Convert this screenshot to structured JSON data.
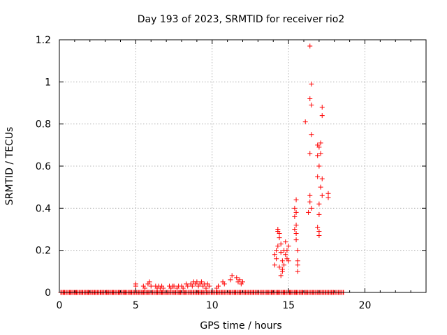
{
  "chart_data": {
    "type": "scatter",
    "title": "Day 193 of 2023, SRMTID for receiver rio2",
    "xlabel": "GPS time / hours",
    "ylabel": "SRMTID / TECUs",
    "xlim": [
      0,
      24
    ],
    "ylim": [
      0,
      1.2
    ],
    "x_ticks": [
      0,
      5,
      10,
      15,
      20
    ],
    "y_ticks": [
      0,
      0.2,
      0.4,
      0.6,
      0.8,
      1,
      1.2
    ],
    "x_tick_labels": [
      "0",
      "5",
      "10",
      "15",
      "20"
    ],
    "y_tick_labels": [
      "0",
      "0.2",
      "0.4",
      "0.6",
      "0.8",
      "1",
      "1.2"
    ],
    "grid": true,
    "marker": "+",
    "series": [
      {
        "name": "SRMTID",
        "color": "#ff0000",
        "x": [
          0.1,
          0.3,
          0.5,
          0.7,
          0.9,
          1.1,
          1.3,
          1.5,
          1.7,
          1.9,
          2.1,
          2.3,
          2.5,
          2.7,
          2.9,
          3.1,
          3.3,
          3.5,
          3.7,
          3.9,
          4.1,
          4.3,
          4.5,
          4.7,
          4.9,
          5.2,
          5.5,
          5.8,
          6.1,
          6.4,
          6.7,
          7.0,
          7.3,
          7.6,
          7.9,
          8.2,
          8.5,
          8.8,
          9.1,
          9.4,
          9.7,
          10.0,
          10.3,
          10.6,
          10.9,
          11.2,
          11.5,
          11.8,
          12.1,
          12.4,
          12.7,
          13.0,
          13.3,
          13.6,
          13.9,
          14.3,
          14.7,
          15.1,
          15.5,
          15.9,
          16.2,
          16.6,
          17.0,
          17.4,
          17.8,
          18.6,
          5.0,
          5.0,
          5.5,
          5.6,
          5.8,
          5.9,
          6.0,
          6.3,
          6.4,
          6.5,
          6.6,
          6.7,
          6.8,
          7.2,
          7.3,
          7.4,
          7.5,
          7.7,
          7.8,
          8.0,
          8.1,
          8.3,
          8.4,
          8.6,
          8.7,
          8.8,
          8.9,
          9.0,
          9.1,
          9.2,
          9.3,
          9.4,
          9.5,
          9.6,
          9.7,
          9.8,
          10.3,
          10.4,
          10.7,
          10.8,
          11.2,
          11.3,
          11.6,
          11.7,
          11.8,
          11.9,
          12.0,
          14.1,
          14.1,
          14.2,
          14.2,
          14.3,
          14.3,
          14.4,
          14.4,
          14.5,
          14.5,
          14.6,
          14.6,
          14.7,
          14.7,
          14.8,
          14.8,
          14.9,
          14.9,
          15.0,
          15.0,
          14.3,
          14.4,
          14.5,
          14.6,
          15.4,
          15.4,
          15.5,
          15.5,
          15.5,
          15.6,
          15.6,
          15.4,
          15.5,
          15.6,
          15.5,
          15.6,
          16.1,
          16.3,
          16.4,
          16.4,
          16.5,
          16.5,
          16.4,
          16.5,
          16.4,
          16.4,
          16.5,
          16.9,
          16.9,
          17.0,
          17.0,
          17.1,
          17.0,
          17.1,
          17.2,
          17.2,
          17.1,
          17.2,
          17.0,
          16.9,
          17.0,
          16.9,
          17.0,
          17.2,
          17.6,
          17.6
        ],
        "y": [
          0,
          0,
          0,
          0,
          0,
          0,
          0,
          0,
          0,
          0,
          0,
          0,
          0,
          0,
          0,
          0,
          0,
          0,
          0,
          0,
          0,
          0,
          0,
          0,
          0,
          0,
          0,
          0,
          0,
          0,
          0,
          0,
          0,
          0,
          0,
          0,
          0,
          0,
          0,
          0,
          0,
          0,
          0,
          0,
          0,
          0,
          0,
          0,
          0,
          0,
          0,
          0,
          0,
          0,
          0,
          0,
          0,
          0,
          0,
          0,
          0,
          0,
          0,
          0,
          0,
          0,
          0.03,
          0.04,
          0.03,
          0.02,
          0.04,
          0.05,
          0.03,
          0.03,
          0.02,
          0.03,
          0.02,
          0.03,
          0.02,
          0.03,
          0.02,
          0.03,
          0.03,
          0.02,
          0.03,
          0.03,
          0.02,
          0.04,
          0.03,
          0.04,
          0.03,
          0.05,
          0.04,
          0.05,
          0.03,
          0.04,
          0.05,
          0.03,
          0.04,
          0.02,
          0.04,
          0.03,
          0.02,
          0.03,
          0.05,
          0.04,
          0.06,
          0.08,
          0.07,
          0.05,
          0.06,
          0.04,
          0.05,
          0.18,
          0.13,
          0.16,
          0.2,
          0.22,
          0.29,
          0.26,
          0.12,
          0.19,
          0.23,
          0.15,
          0.1,
          0.2,
          0.13,
          0.18,
          0.24,
          0.16,
          0.2,
          0.22,
          0.15,
          0.3,
          0.28,
          0.08,
          0.11,
          0.4,
          0.36,
          0.44,
          0.32,
          0.28,
          0.2,
          0.15,
          0.3,
          0.38,
          0.1,
          0.25,
          0.13,
          0.81,
          0.38,
          0.46,
          0.66,
          0.75,
          0.89,
          0.92,
          0.99,
          1.17,
          0.43,
          0.4,
          0.7,
          0.55,
          0.69,
          0.6,
          0.66,
          0.29,
          0.71,
          0.88,
          0.84,
          0.5,
          0.54,
          0.37,
          0.31,
          0.27,
          0.65,
          0.42,
          0.46,
          0.47,
          0.45
        ]
      }
    ]
  }
}
